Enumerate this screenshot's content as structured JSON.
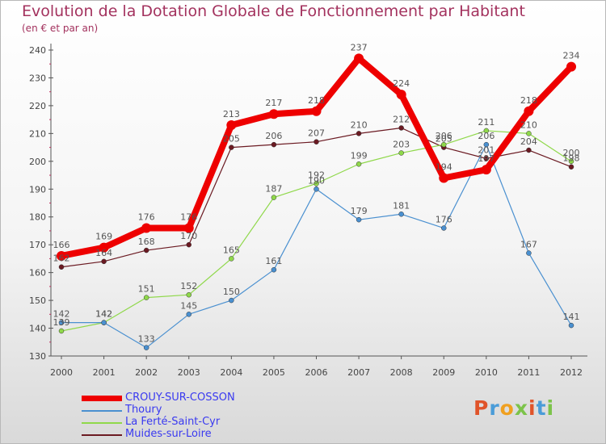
{
  "title": "Evolution de la Dotation Globale de Fonctionnement par Habitant",
  "subtitle": "(en € et par an)",
  "logo": {
    "text": "Proxiti",
    "colors": [
      "#e0542a",
      "#4a9cd8",
      "#f0a020",
      "#7cc34a",
      "#e0542a",
      "#4a9cd8",
      "#7cc34a"
    ]
  },
  "colors": {
    "title": "#a3325e",
    "axis": "#555555",
    "tick_label": "#444444",
    "point_label": "#555555",
    "legend_text": "#3a3af0"
  },
  "chart_data": {
    "type": "line",
    "x": [
      2000,
      2001,
      2002,
      2003,
      2004,
      2005,
      2006,
      2007,
      2008,
      2009,
      2010,
      2011,
      2012
    ],
    "ylim": [
      130,
      240
    ],
    "yticks": [
      130,
      140,
      150,
      160,
      170,
      180,
      190,
      200,
      210,
      220,
      230,
      240
    ],
    "grid": false,
    "legend_position": "bottom-left",
    "series": [
      {
        "name": "Muides-sur-Loire",
        "color": "#6b1a22",
        "values": [
          162,
          164,
          168,
          170,
          205,
          206,
          207,
          210,
          212,
          205,
          201,
          204,
          198
        ]
      },
      {
        "name": "La Ferté-Saint-Cyr",
        "color": "#8fd84a",
        "values": [
          139,
          142,
          151,
          152,
          165,
          187,
          192,
          199,
          203,
          206,
          211,
          210,
          200
        ]
      },
      {
        "name": "Thoury",
        "color": "#4a90d0",
        "values": [
          142,
          142,
          133,
          145,
          150,
          161,
          190,
          179,
          181,
          176,
          206,
          167,
          141
        ]
      },
      {
        "name": "CROUY-SUR-COSSON",
        "color": "#ee0000",
        "values": [
          166,
          169,
          176,
          176,
          213,
          217,
          218,
          237,
          224,
          194,
          197,
          218,
          234
        ]
      }
    ]
  },
  "legend": [
    {
      "name": "CROUY-SUR-COSSON",
      "color": "#ee0000"
    },
    {
      "name": "Thoury",
      "color": "#4a90d0"
    },
    {
      "name": "La Ferté-Saint-Cyr",
      "color": "#8fd84a"
    },
    {
      "name": "Muides-sur-Loire",
      "color": "#6b1a22"
    }
  ]
}
